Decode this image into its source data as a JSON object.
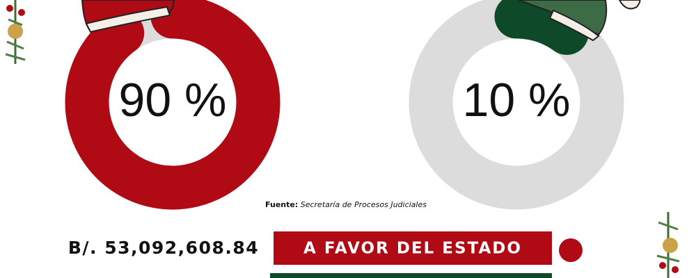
{
  "chart_data": [
    {
      "type": "donut",
      "values": [
        90
      ],
      "value_labels": [
        "90 %"
      ],
      "color": "#b00a14",
      "track_color": "#dcdcdc"
    },
    {
      "type": "donut",
      "values": [
        10
      ],
      "value_labels": [
        "10 %"
      ],
      "color": "#0e4a2a",
      "track_color": "#dcdcdc"
    }
  ],
  "source": {
    "label": "Fuente:",
    "text": "Secretaría de Procesos Judiciales"
  },
  "summary": {
    "amount": "B/. 53,092,608.84",
    "label": "A FAVOR DEL ESTADO"
  }
}
